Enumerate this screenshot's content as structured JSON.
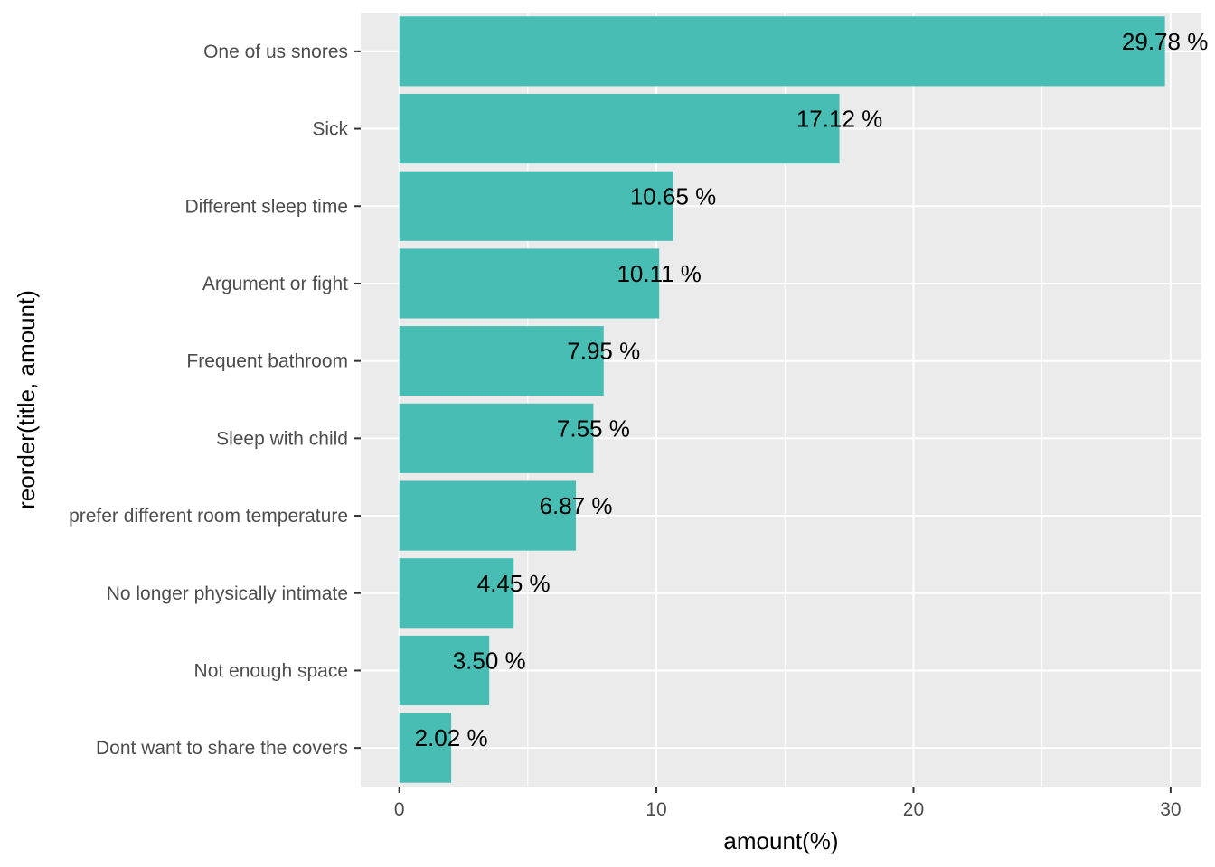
{
  "chart_data": {
    "type": "bar",
    "orientation": "horizontal",
    "categories": [
      "One of us snores",
      "Sick",
      "Different sleep time",
      "Argument or fight",
      "Frequent bathroom",
      "Sleep with child",
      "prefer different room temperature",
      "No longer physically intimate",
      "Not enough space",
      "Dont want to share the covers"
    ],
    "values": [
      29.78,
      17.12,
      10.65,
      10.11,
      7.95,
      7.55,
      6.87,
      4.45,
      3.5,
      2.02
    ],
    "data_labels": [
      "29.78 %",
      "17.12 %",
      "10.65 %",
      "10.11 %",
      "7.95 %",
      "7.55 %",
      "6.87 %",
      "4.45 %",
      "3.50 %",
      "2.02 %"
    ],
    "xlabel": "amount(%)",
    "ylabel": "reorder(title, amount)",
    "xlim": [
      -1.5,
      31.2
    ],
    "x_ticks": [
      0,
      10,
      20,
      30
    ],
    "x_tick_labels": [
      "0",
      "10",
      "20",
      "30"
    ],
    "grid": true,
    "legend": "none",
    "colors": {
      "bar": "#48bdb4",
      "panel_background": "#ebebeb",
      "grid_line": "#ffffff"
    }
  }
}
